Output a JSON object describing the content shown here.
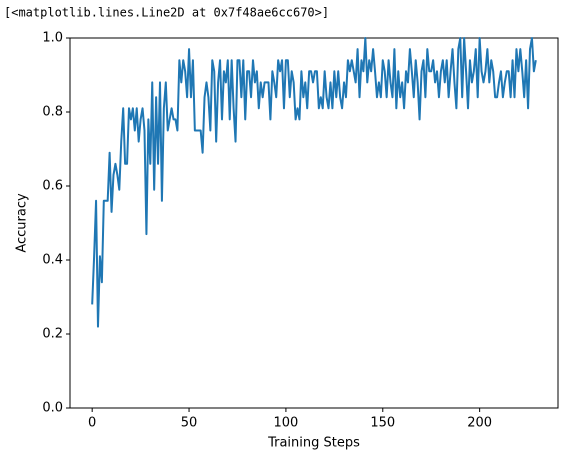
{
  "output_text": "[<matplotlib.lines.Line2D at 0x7f48ae6cc670>]",
  "chart_data": {
    "type": "line",
    "xlabel": "Training Steps",
    "ylabel": "Accuracy",
    "color": "#1f77b4",
    "x": [
      0,
      1,
      2,
      3,
      4,
      5,
      6,
      7,
      8,
      9,
      10,
      11,
      12,
      13,
      14,
      15,
      16,
      17,
      18,
      19,
      20,
      21,
      22,
      23,
      24,
      25,
      26,
      27,
      28,
      29,
      30,
      31,
      32,
      33,
      34,
      35,
      36,
      37,
      38,
      39,
      40,
      41,
      42,
      43,
      44,
      45,
      46,
      47,
      48,
      49,
      50,
      51,
      52,
      53,
      54,
      55,
      56,
      57,
      58,
      59,
      60,
      61,
      62,
      63,
      64,
      65,
      66,
      67,
      68,
      69,
      70,
      71,
      72,
      73,
      74,
      75,
      76,
      77,
      78,
      79,
      80,
      81,
      82,
      83,
      84,
      85,
      86,
      87,
      88,
      89,
      90,
      91,
      92,
      93,
      94,
      95,
      96,
      97,
      98,
      99,
      100,
      101,
      102,
      103,
      104,
      105,
      106,
      107,
      108,
      109,
      110,
      111,
      112,
      113,
      114,
      115,
      116,
      117,
      118,
      119,
      120,
      121,
      122,
      123,
      124,
      125,
      126,
      127,
      128,
      129,
      130,
      131,
      132,
      133,
      134,
      135,
      136,
      137,
      138,
      139,
      140,
      141,
      142,
      143,
      144,
      145,
      146,
      147,
      148,
      149,
      150,
      151,
      152,
      153,
      154,
      155,
      156,
      157,
      158,
      159,
      160,
      161,
      162,
      163,
      164,
      165,
      166,
      167,
      168,
      169,
      170,
      171,
      172,
      173,
      174,
      175,
      176,
      177,
      178,
      179,
      180,
      181,
      182,
      183,
      184,
      185,
      186,
      187,
      188,
      189,
      190,
      191,
      192,
      193,
      194,
      195,
      196,
      197,
      198,
      199,
      200,
      201,
      202,
      203,
      204,
      205,
      206,
      207,
      208,
      209,
      210,
      211,
      212,
      213,
      214,
      215,
      216,
      217,
      218,
      219,
      220,
      221,
      222,
      223,
      224,
      225,
      226,
      227,
      228,
      229
    ],
    "values": [
      0.28,
      0.41,
      0.56,
      0.22,
      0.41,
      0.34,
      0.56,
      0.56,
      0.56,
      0.69,
      0.53,
      0.63,
      0.66,
      0.63,
      0.59,
      0.72,
      0.81,
      0.66,
      0.66,
      0.81,
      0.78,
      0.81,
      0.75,
      0.81,
      0.72,
      0.78,
      0.81,
      0.75,
      0.47,
      0.78,
      0.66,
      0.88,
      0.59,
      0.84,
      0.66,
      0.88,
      0.56,
      0.81,
      0.88,
      0.75,
      0.78,
      0.81,
      0.78,
      0.78,
      0.75,
      0.94,
      0.88,
      0.94,
      0.91,
      0.84,
      0.97,
      0.84,
      0.94,
      0.75,
      0.75,
      0.75,
      0.75,
      0.69,
      0.84,
      0.88,
      0.84,
      0.75,
      0.94,
      0.91,
      0.72,
      0.88,
      0.94,
      0.78,
      0.91,
      0.88,
      0.94,
      0.78,
      0.94,
      0.81,
      0.72,
      0.94,
      0.94,
      0.84,
      0.94,
      0.78,
      0.91,
      0.91,
      0.84,
      0.94,
      0.88,
      0.91,
      0.81,
      0.88,
      0.84,
      0.88,
      0.88,
      0.88,
      0.78,
      0.91,
      0.88,
      0.84,
      0.94,
      0.91,
      0.94,
      0.81,
      0.94,
      0.94,
      0.84,
      0.91,
      0.88,
      0.78,
      0.81,
      0.78,
      0.91,
      0.84,
      0.88,
      0.81,
      0.91,
      0.91,
      0.88,
      0.91,
      0.91,
      0.81,
      0.84,
      0.81,
      0.91,
      0.84,
      0.81,
      0.88,
      0.81,
      0.91,
      0.84,
      0.91,
      0.84,
      0.81,
      0.88,
      0.84,
      0.94,
      0.91,
      0.94,
      0.91,
      0.88,
      0.97,
      0.84,
      0.94,
      0.91,
      1.0,
      0.88,
      0.94,
      0.91,
      0.97,
      0.91,
      0.84,
      0.88,
      0.84,
      0.94,
      0.91,
      0.84,
      0.94,
      0.88,
      0.84,
      0.97,
      0.81,
      0.91,
      0.84,
      0.88,
      0.81,
      0.91,
      0.88,
      0.97,
      0.91,
      0.84,
      0.94,
      0.88,
      0.78,
      0.91,
      0.94,
      0.84,
      0.97,
      0.91,
      0.91,
      0.94,
      0.88,
      0.91,
      0.84,
      0.91,
      0.94,
      0.88,
      0.94,
      0.84,
      0.91,
      0.97,
      0.88,
      0.81,
      0.97,
      1.0,
      0.84,
      1.0,
      0.91,
      0.81,
      0.94,
      0.88,
      0.91,
      0.97,
      0.84,
      1.0,
      0.91,
      0.88,
      0.91,
      0.97,
      0.88,
      0.94,
      0.91,
      0.84,
      0.84,
      0.88,
      0.91,
      0.84,
      0.88,
      0.91,
      0.91,
      0.84,
      0.94,
      0.84,
      0.97,
      0.91,
      0.97,
      0.91,
      0.84,
      0.94,
      0.81,
      0.97,
      1.0,
      0.91,
      0.94
    ],
    "xlim": [
      -11.45,
      240.45
    ],
    "ylim": [
      0,
      1
    ],
    "xticks": [
      0,
      50,
      100,
      150,
      200
    ],
    "yticks": [
      {
        "value": 0,
        "label": "0.0"
      },
      0.2,
      0.4,
      0.6,
      0.8,
      {
        "value": 1,
        "label": "1.0"
      }
    ]
  }
}
